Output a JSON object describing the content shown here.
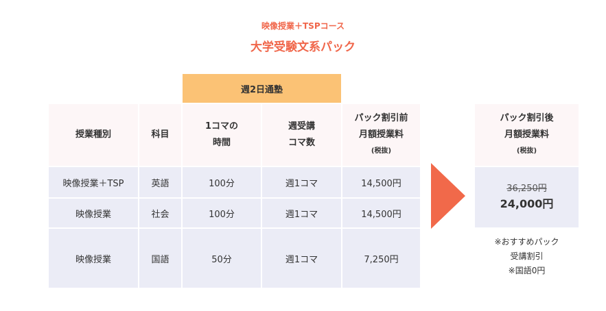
{
  "course": {
    "subtitle": "映像授業＋TSPコース",
    "title": "大学受験文系パック"
  },
  "table": {
    "group_header": "週2日通塾",
    "headers": {
      "type": "授業種別",
      "subject": "科目",
      "time_l1": "1コマの",
      "time_l2": "時間",
      "weekly_l1": "週受講",
      "weekly_l2": "コマ数",
      "price_l1": "パック割引前",
      "price_l2": "月額授業料",
      "price_l3": "(税抜)"
    },
    "rows": [
      {
        "type": "映像授業＋TSP",
        "subject": "英語",
        "time": "100分",
        "weekly": "週1コマ",
        "price": "14,500円"
      },
      {
        "type": "映像授業",
        "subject": "社会",
        "time": "100分",
        "weekly": "週1コマ",
        "price": "14,500円"
      },
      {
        "type": "映像授業",
        "subject": "国語",
        "time": "50分",
        "weekly": "週1コマ",
        "price": "7,250円"
      }
    ]
  },
  "after": {
    "header_l1": "パック割引後",
    "header_l2": "月額授業料",
    "header_l3": "(税抜)",
    "old_price": "36,250円",
    "new_price": "24,000円",
    "note_l1": "※おすすめパック",
    "note_l2": "受講割引",
    "note_l3": "※国語0円"
  },
  "colors": {
    "accent": "#f0664a",
    "group_header_bg": "#fbc275",
    "header_bg": "#fdf6f7",
    "body_bg": "#ebecf6",
    "arrow": "#f1694a"
  }
}
